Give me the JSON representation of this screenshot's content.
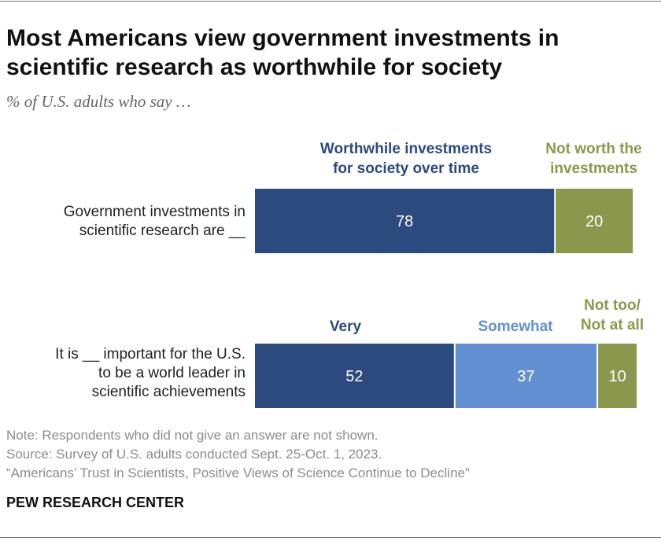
{
  "header": {
    "title_line1": "Most Americans view government investments in",
    "title_line2": "scientific research as worthwhile for society",
    "subtitle": "% of U.S. adults who say …"
  },
  "chart_data": {
    "type": "bar",
    "orientation": "horizontal",
    "stacked": true,
    "xlim": [
      0,
      100
    ],
    "grid": false,
    "rows": [
      {
        "label_lines": [
          "Government investments in",
          "scientific research are __"
        ],
        "segments": [
          {
            "name_lines": [
              "Worthwhile investments",
              "for society over time"
            ],
            "value": 78,
            "color": "#2d4a7f",
            "label_color": "#2d4a7f"
          },
          {
            "name_lines": [
              "Not worth the",
              "investments"
            ],
            "value": 20,
            "color": "#8c974e",
            "label_color": "#8c974e"
          }
        ]
      },
      {
        "label_lines": [
          "It is __ important for the U.S.",
          "to be a world leader in",
          "scientific achievements"
        ],
        "segments": [
          {
            "name_lines": [
              "Very"
            ],
            "value": 52,
            "color": "#2d4a7f",
            "label_color": "#2d4a7f"
          },
          {
            "name_lines": [
              "Somewhat"
            ],
            "value": 37,
            "color": "#6390d0",
            "label_color": "#6390d0"
          },
          {
            "name_lines": [
              "Not too/",
              "Not at all"
            ],
            "value": 10,
            "color": "#8c974e",
            "label_color": "#8c974e"
          }
        ]
      }
    ]
  },
  "footer": {
    "note": "Note: Respondents who did not give an answer are not shown.",
    "source": "Source: Survey of U.S. adults conducted Sept. 25-Oct. 1, 2023.",
    "report": "“Americans’ Trust in Scientists, Positive Views of Science Continue to Decline”",
    "org": "PEW RESEARCH CENTER"
  }
}
